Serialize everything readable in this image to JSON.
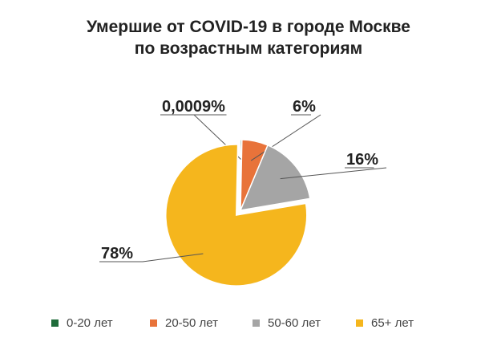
{
  "chart_data": {
    "type": "pie",
    "title_lines": [
      "Умершие от COVID-19 в городе Москве",
      "по возрастным категориям"
    ],
    "slices": [
      {
        "label": "0-20 лет",
        "value": 0.0009,
        "display": "0,0009%",
        "color": "#1e6b3a"
      },
      {
        "label": "20-50 лет",
        "value": 6,
        "display": "6%",
        "color": "#e8733a"
      },
      {
        "label": "50-60 лет",
        "value": 16,
        "display": "16%",
        "color": "#a5a5a5"
      },
      {
        "label": "65+ лет",
        "value": 78,
        "display": "78%",
        "color": "#f5b61d"
      }
    ],
    "legend_position": "bottom",
    "exploded_slice": "65+ лет"
  }
}
